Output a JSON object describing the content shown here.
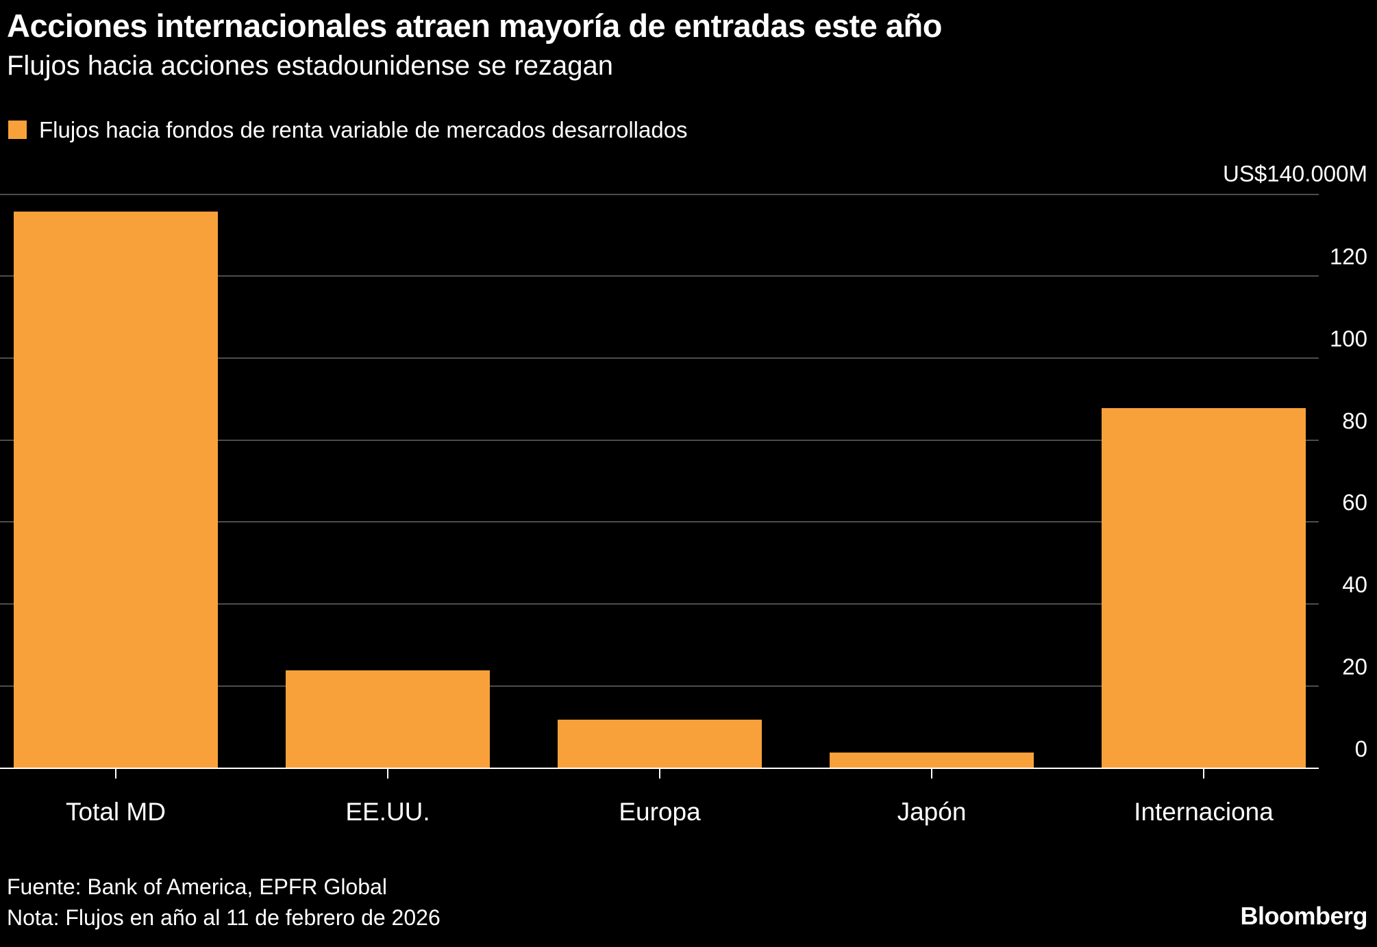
{
  "chart_data": {
    "type": "bar",
    "title": "Acciones internacionales atraen mayoría de entradas este año",
    "subtitle": "Flujos hacia acciones estadounidense se rezagan",
    "legend": [
      "Flujos hacia fondos de renta variable de mercados desarrollados"
    ],
    "legend_position": "top-left",
    "categories": [
      "Total MD",
      "EE.UU.",
      "Europa",
      "Japón",
      "Internaciona"
    ],
    "values": [
      136,
      24,
      12,
      4,
      88
    ],
    "unit_label": "US$140.000M",
    "xlabel": "",
    "ylabel": "",
    "ylim": [
      0,
      140
    ],
    "yticks": [
      0,
      20,
      40,
      60,
      80,
      100,
      120
    ],
    "ytick_side": "right",
    "grid": true,
    "bar_color": "#F8A13A",
    "gridline_color": "#4d4d4d",
    "baseline_color": "#ffffff",
    "background_color": "#000000",
    "text_color": "#ffffff",
    "source": "Fuente: Bank of America, EPFR Global",
    "note": "Nota: Flujos en año al 11 de febrero de 2026"
  },
  "brand": "Bloomberg"
}
